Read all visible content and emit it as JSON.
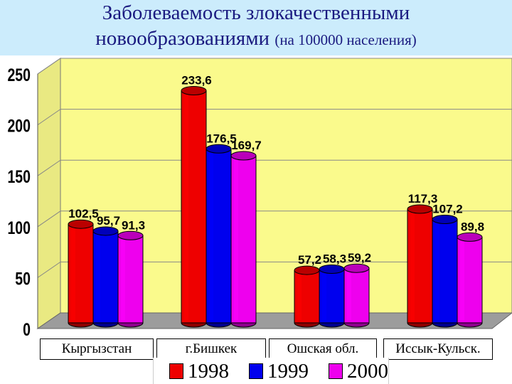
{
  "title": {
    "line1": "Заболеваемость злокачественными",
    "line2": "новообразованиями",
    "note": "(на 100000 населения)"
  },
  "chart_data": {
    "type": "bar",
    "categories": [
      "Кыргызстан",
      "г.Бишкек",
      "Ошская обл.",
      "Иссык-Кульск."
    ],
    "series": [
      {
        "name": "1998",
        "values": [
          102.5,
          233.6,
          57.2,
          117.3
        ],
        "color": "#ee0000"
      },
      {
        "name": "1999",
        "values": [
          95.7,
          176.5,
          58.3,
          107.2
        ],
        "color": "#0000ee"
      },
      {
        "name": "2000",
        "values": [
          91.3,
          169.7,
          59.2,
          89.8
        ],
        "color": "#ee00ee"
      }
    ],
    "value_labels": [
      [
        "102,5",
        "233,6",
        "57,2",
        "117,3"
      ],
      [
        "95,7",
        "176,5",
        "58,3",
        "107,2"
      ],
      [
        "91,3",
        "169,7",
        "59,2",
        "89,8"
      ]
    ],
    "ylim": [
      0,
      250
    ],
    "yticks": [
      "0",
      "50",
      "100",
      "150",
      "200",
      "250"
    ],
    "plot_background": "#fafa8c",
    "floor_color": "#9c9c9c",
    "legend_position": "bottom"
  }
}
